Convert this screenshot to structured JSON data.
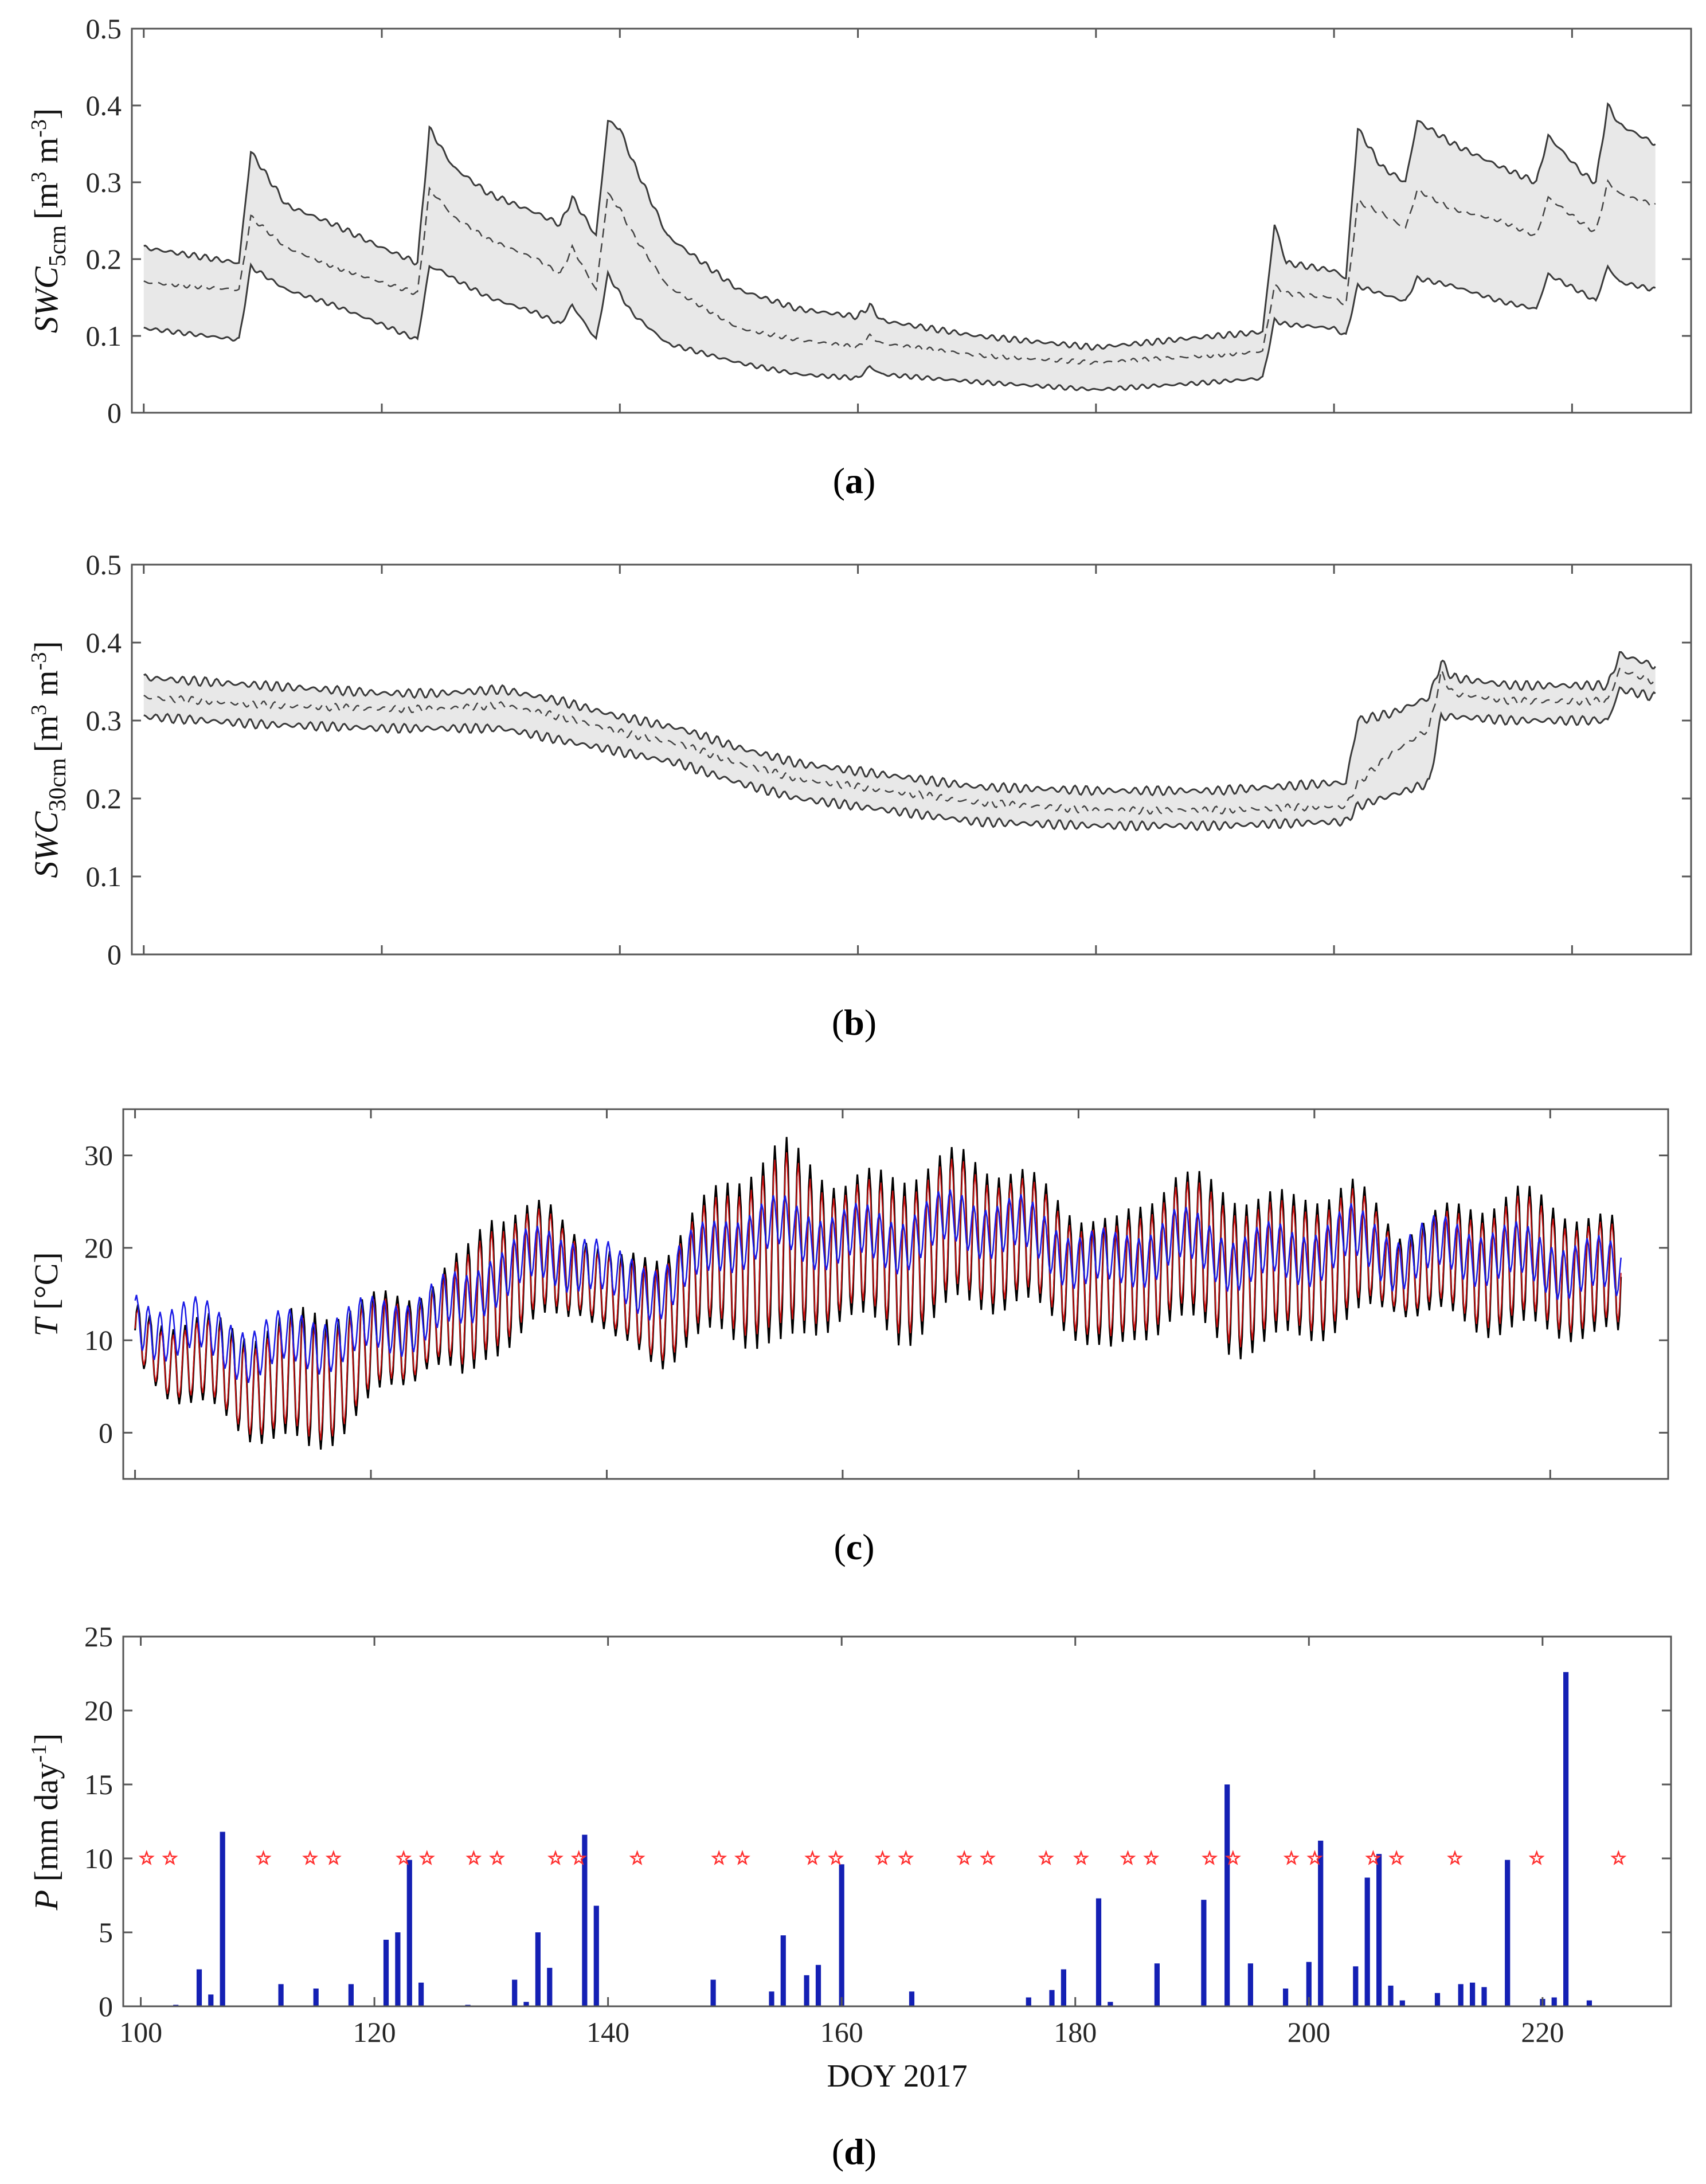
{
  "chart_data": [
    {
      "panel": "a",
      "caption_letter": "a",
      "type": "area",
      "ylabel_symbol": "SWC",
      "ylabel_sub": "5cm",
      "ylabel_unit": "[m",
      "ylabel_exp1": "3",
      "ylabel_unit2": " m",
      "ylabel_exp2": "-3",
      "ylabel_close": "]",
      "xlim": [
        99,
        230
      ],
      "ylim": [
        0,
        0.5
      ],
      "yticks": [
        "0",
        "0.1",
        "0.2",
        "0.3",
        "0.4",
        "0.5"
      ],
      "x": [
        100,
        108,
        109,
        112,
        116,
        120,
        123,
        124,
        125,
        126,
        129,
        133,
        135,
        136,
        138,
        139,
        140,
        141,
        144,
        150,
        155,
        160,
        161,
        162,
        170,
        180,
        190,
        194,
        195,
        196,
        200,
        201,
        202,
        204,
        206,
        207,
        210,
        214,
        217,
        218,
        221,
        222,
        223,
        224,
        227
      ],
      "series": [
        {
          "name": "upper",
          "values": [
            0.215,
            0.195,
            0.34,
            0.27,
            0.245,
            0.215,
            0.195,
            0.37,
            0.345,
            0.32,
            0.285,
            0.26,
            0.245,
            0.28,
            0.23,
            0.38,
            0.37,
            0.33,
            0.23,
            0.16,
            0.135,
            0.125,
            0.14,
            0.12,
            0.1,
            0.085,
            0.1,
            0.105,
            0.245,
            0.195,
            0.185,
            0.175,
            0.37,
            0.32,
            0.3,
            0.38,
            0.35,
            0.32,
            0.3,
            0.36,
            0.31,
            0.3,
            0.4,
            0.375,
            0.35
          ]
        },
        {
          "name": "mean",
          "values": [
            0.17,
            0.16,
            0.255,
            0.215,
            0.19,
            0.17,
            0.155,
            0.29,
            0.275,
            0.255,
            0.225,
            0.2,
            0.18,
            0.215,
            0.16,
            0.285,
            0.265,
            0.235,
            0.165,
            0.11,
            0.095,
            0.085,
            0.1,
            0.09,
            0.075,
            0.065,
            0.075,
            0.08,
            0.165,
            0.155,
            0.15,
            0.14,
            0.275,
            0.26,
            0.24,
            0.29,
            0.265,
            0.25,
            0.23,
            0.28,
            0.245,
            0.235,
            0.3,
            0.285,
            0.27
          ]
        },
        {
          "name": "lower",
          "values": [
            0.11,
            0.095,
            0.19,
            0.16,
            0.14,
            0.115,
            0.095,
            0.19,
            0.185,
            0.175,
            0.15,
            0.13,
            0.115,
            0.14,
            0.095,
            0.18,
            0.155,
            0.13,
            0.09,
            0.065,
            0.05,
            0.045,
            0.06,
            0.05,
            0.04,
            0.03,
            0.04,
            0.045,
            0.12,
            0.115,
            0.11,
            0.1,
            0.165,
            0.155,
            0.145,
            0.175,
            0.165,
            0.145,
            0.135,
            0.18,
            0.155,
            0.145,
            0.19,
            0.17,
            0.16
          ]
        }
      ]
    },
    {
      "panel": "b",
      "caption_letter": "b",
      "type": "area",
      "ylabel_symbol": "SWC",
      "ylabel_sub": "30cm",
      "ylabel_unit": "[m",
      "ylabel_exp1": "3",
      "ylabel_unit2": " m",
      "ylabel_exp2": "-3",
      "ylabel_close": "]",
      "xlim": [
        99,
        230
      ],
      "ylim": [
        0,
        0.5
      ],
      "yticks": [
        "0",
        "0.1",
        "0.2",
        "0.3",
        "0.4",
        "0.5"
      ],
      "x": [
        100,
        110,
        120,
        125,
        130,
        135,
        140,
        145,
        150,
        155,
        160,
        170,
        180,
        190,
        200,
        201,
        202,
        205,
        208,
        209,
        210,
        215,
        220,
        223,
        224,
        227
      ],
      "series": [
        {
          "name": "upper",
          "values": [
            0.355,
            0.345,
            0.335,
            0.335,
            0.34,
            0.325,
            0.305,
            0.29,
            0.265,
            0.245,
            0.235,
            0.215,
            0.21,
            0.21,
            0.22,
            0.22,
            0.3,
            0.31,
            0.33,
            0.375,
            0.355,
            0.345,
            0.345,
            0.345,
            0.385,
            0.37
          ]
        },
        {
          "name": "mean",
          "values": [
            0.33,
            0.32,
            0.315,
            0.315,
            0.32,
            0.305,
            0.285,
            0.27,
            0.245,
            0.225,
            0.215,
            0.195,
            0.185,
            0.185,
            0.19,
            0.19,
            0.22,
            0.26,
            0.29,
            0.36,
            0.335,
            0.325,
            0.325,
            0.325,
            0.365,
            0.35
          ]
        },
        {
          "name": "lower",
          "values": [
            0.305,
            0.295,
            0.29,
            0.29,
            0.29,
            0.275,
            0.26,
            0.245,
            0.22,
            0.2,
            0.19,
            0.17,
            0.165,
            0.165,
            0.17,
            0.17,
            0.19,
            0.205,
            0.22,
            0.305,
            0.305,
            0.3,
            0.3,
            0.3,
            0.34,
            0.33
          ]
        }
      ]
    },
    {
      "panel": "c",
      "caption_letter": "c",
      "type": "line",
      "ylabel_symbol": "T",
      "ylabel_unit": " [°C]",
      "xlim": [
        99,
        230
      ],
      "ylim": [
        -5,
        35
      ],
      "yticks": [
        "0",
        "10",
        "20",
        "30"
      ],
      "ytick_values": [
        0,
        10,
        20,
        30
      ],
      "x": [
        100,
        105,
        110,
        115,
        120,
        125,
        128,
        130,
        135,
        138,
        141,
        145,
        150,
        155,
        160,
        165,
        170,
        175,
        180,
        183,
        188,
        193,
        198,
        203,
        207,
        212,
        217,
        222,
        226
      ],
      "series": [
        {
          "name": "T max (black)",
          "color": "#000000",
          "values": [
            13,
            12,
            11,
            13,
            14,
            16,
            19,
            24,
            24,
            22,
            18,
            20,
            27,
            31,
            27,
            28,
            30,
            28,
            24,
            22,
            28,
            26,
            25,
            27,
            22,
            24,
            26,
            24,
            22
          ]
        },
        {
          "name": "T min (black)",
          "color": "#000000",
          "values": [
            7,
            3,
            0,
            -2,
            3,
            8,
            5,
            9,
            12,
            14,
            9,
            8,
            11,
            9,
            13,
            10,
            14,
            14,
            11,
            8,
            13,
            9,
            10,
            12,
            14,
            12,
            11,
            11,
            10
          ]
        },
        {
          "name": "T mean (red)",
          "color": "#cc1111",
          "values": [
            10,
            8,
            6,
            7,
            9,
            12,
            12,
            16,
            18,
            18,
            14,
            14,
            19,
            20,
            20,
            19,
            22,
            21,
            18,
            15,
            20,
            17,
            18,
            20,
            18,
            18,
            18,
            17,
            16
          ]
        },
        {
          "name": "T soil (blue)",
          "color": "#1a1ae6",
          "values": [
            12,
            11,
            9,
            10,
            11,
            13,
            14,
            17,
            19,
            19,
            16,
            16,
            21,
            22,
            21,
            21,
            23,
            22,
            19,
            18,
            21,
            19,
            19,
            21,
            19,
            20,
            19,
            18,
            17
          ]
        }
      ]
    },
    {
      "panel": "d",
      "caption_letter": "d",
      "type": "bar",
      "ylabel_symbol": "P",
      "ylabel_unit": " [mm day",
      "ylabel_exp": "-1",
      "ylabel_close": "]",
      "xlabel": "DOY 2017",
      "xlim": [
        98.5,
        231
      ],
      "ylim": [
        0,
        25
      ],
      "yticks": [
        "0",
        "5",
        "10",
        "15",
        "20",
        "25"
      ],
      "xticks": [
        "100",
        "120",
        "140",
        "160",
        "180",
        "200",
        "220"
      ],
      "bars_x": [
        103,
        105,
        106,
        107,
        112,
        115,
        118,
        121,
        122,
        123,
        124,
        128,
        132,
        133,
        134,
        135,
        138,
        139,
        149,
        154,
        155,
        157,
        158,
        160,
        166,
        176,
        178,
        179,
        182,
        183,
        187,
        191,
        193,
        195,
        198,
        200,
        201,
        204,
        205,
        206,
        207,
        208,
        211,
        213,
        214,
        215,
        217,
        220,
        221,
        222,
        224
      ],
      "bars_values": [
        0.1,
        2.5,
        0.8,
        11.8,
        1.5,
        1.2,
        1.5,
        4.5,
        5,
        9.9,
        1.6,
        0.1,
        1.8,
        0.3,
        5,
        2.6,
        11.6,
        6.8,
        1.8,
        1,
        4.8,
        2.1,
        2.8,
        9.6,
        1,
        0.6,
        1.1,
        2.5,
        7.3,
        0.3,
        2.9,
        7.2,
        15,
        2.9,
        1.2,
        3,
        11.2,
        2.7,
        8.7,
        10.3,
        1.4,
        0.4,
        0.9,
        1.5,
        1.6,
        1.3,
        9.9,
        0.5,
        0.6,
        22.6,
        0.4
      ],
      "bar_color": "#1420b4",
      "star_y": 10,
      "star_color": "#ff3030",
      "stars_x": [
        100.5,
        102.5,
        110.5,
        114.5,
        116.5,
        122.5,
        124.5,
        128.5,
        130.5,
        135.5,
        137.5,
        142.5,
        149.5,
        151.5,
        157.5,
        159.5,
        163.5,
        165.5,
        170.5,
        172.5,
        177.5,
        180.5,
        184.5,
        186.5,
        191.5,
        193.5,
        198.5,
        200.5,
        205.5,
        207.5,
        212.5,
        219.5,
        226.5
      ]
    }
  ]
}
